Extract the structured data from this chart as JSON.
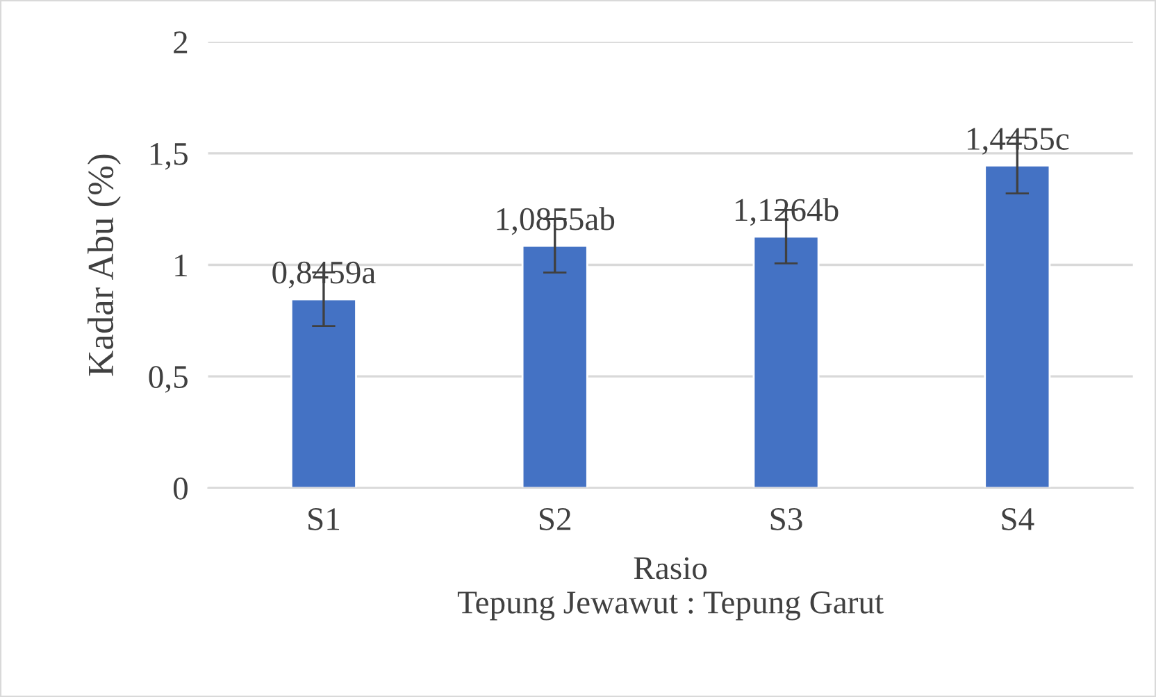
{
  "chart_data": {
    "type": "bar",
    "xlabel": "Rasio\nTepung Jewawut : Tepung Garut",
    "ylabel": "Kadar Abu (%)",
    "categories": [
      "S1",
      "S2",
      "S3",
      "S4"
    ],
    "values": [
      0.8459,
      1.0855,
      1.1264,
      1.4455
    ],
    "errors": [
      0.12,
      0.12,
      0.12,
      0.125
    ],
    "value_labels": [
      "0,8459a",
      "1,0855ab",
      "1,1264b",
      "1,4455c"
    ],
    "color": "#4472c4",
    "ylim": [
      0,
      2
    ],
    "yticks": [
      0,
      {
        "value": 0.5,
        "label": "0,5"
      },
      1,
      {
        "value": 1.5,
        "label": "1,5"
      },
      2
    ],
    "grid": "y",
    "legend": false
  }
}
